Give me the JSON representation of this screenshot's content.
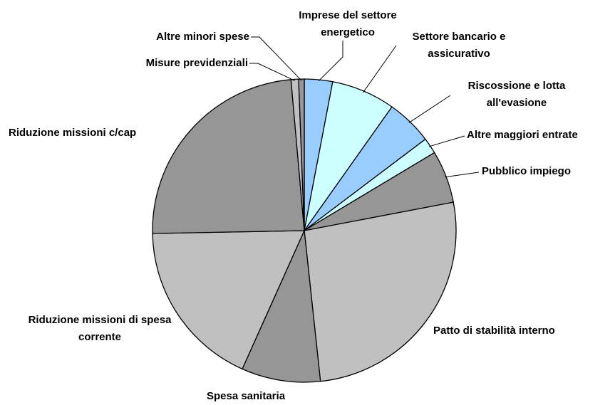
{
  "chart_data": {
    "type": "pie",
    "categories": [
      "Imprese del settore energetico",
      "Settore bancario e assicurativo",
      "Riscossione e lotta all'evasione",
      "Altre maggiori entrate",
      "Pubblico impiego",
      "Patto di stabilità interno",
      "Spesa sanitaria",
      "Riduzione missioni di spesa corrente",
      "Riduzione missioni c/cap",
      "Misure previdenziali",
      "Altre minori spese"
    ],
    "values": [
      3.0,
      6.8,
      4.9,
      1.7,
      5.6,
      26.3,
      8.4,
      18.0,
      23.9,
      0.8,
      0.6
    ],
    "colors": [
      "#99ccff",
      "#ccffff",
      "#99ccff",
      "#ccffff",
      "#969696",
      "#c0c0c0",
      "#969696",
      "#c0c0c0",
      "#969696",
      "#c0c0c0",
      "#969696"
    ]
  }
}
